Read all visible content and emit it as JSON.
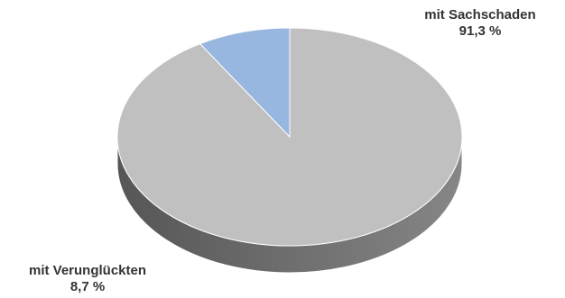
{
  "chart_data": {
    "type": "pie",
    "style": "3d",
    "slices": [
      {
        "label": "mit Sachschaden",
        "value": 91.3,
        "value_label": "91,3 %",
        "color": "#c0c0c0"
      },
      {
        "label": "mit Verunglückten",
        "value": 8.7,
        "value_label": "8,7 %",
        "color": "#97b6e0"
      }
    ]
  }
}
